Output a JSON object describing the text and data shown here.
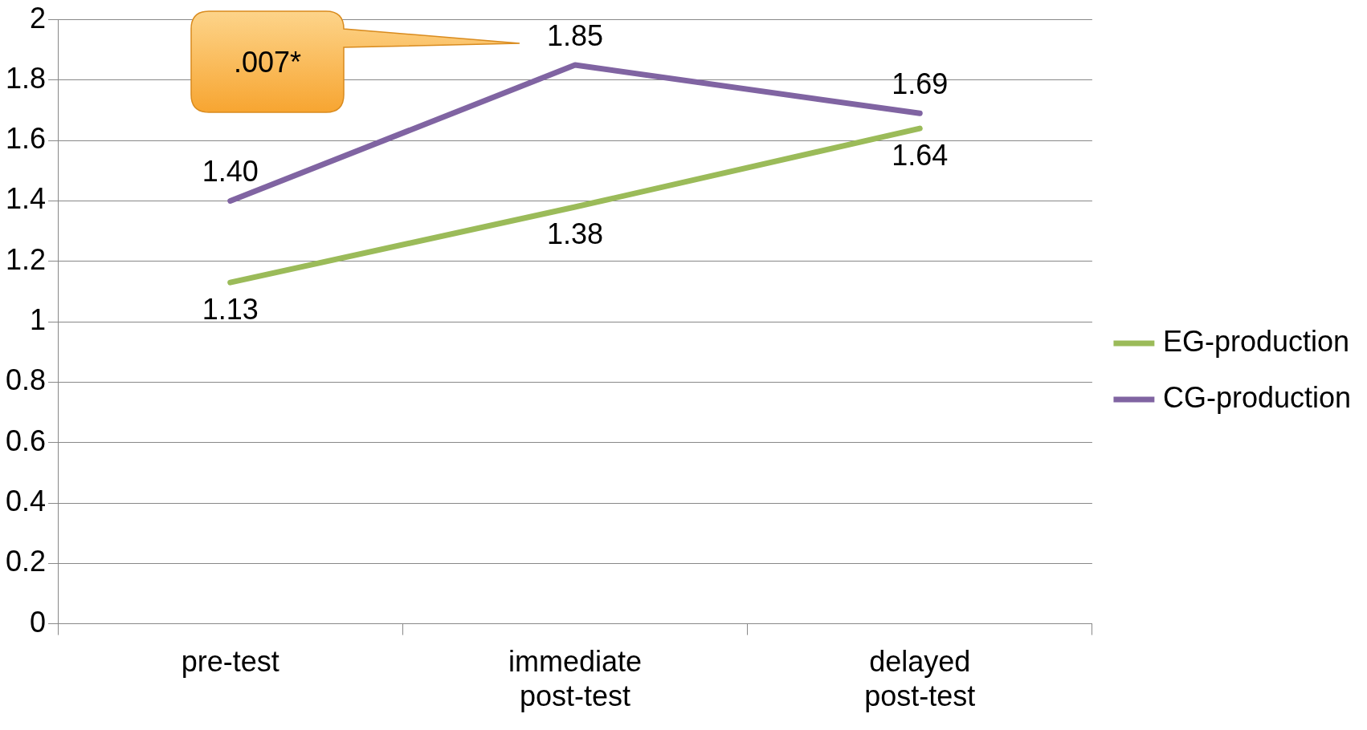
{
  "chart_data": {
    "type": "line",
    "categories": [
      "pre-test",
      "immediate post-test",
      "delayed post-test"
    ],
    "series": [
      {
        "name": "EG-production",
        "color": "#9bbb59",
        "values": [
          1.13,
          1.38,
          1.64
        ],
        "value_labels": [
          "1.13",
          "1.38",
          "1.64"
        ]
      },
      {
        "name": "CG-production",
        "color": "#8064a2",
        "values": [
          1.4,
          1.85,
          1.69
        ],
        "value_labels": [
          "1.40",
          "1.85",
          "1.69"
        ]
      }
    ],
    "ylim": [
      0,
      2
    ],
    "yticks": [
      0,
      0.2,
      0.4,
      0.6,
      0.8,
      1,
      1.2,
      1.4,
      1.6,
      1.8,
      2
    ],
    "grid": "y",
    "legend": "right",
    "marker": "none",
    "line_style": "solid",
    "annotations": [
      ".007*"
    ]
  }
}
